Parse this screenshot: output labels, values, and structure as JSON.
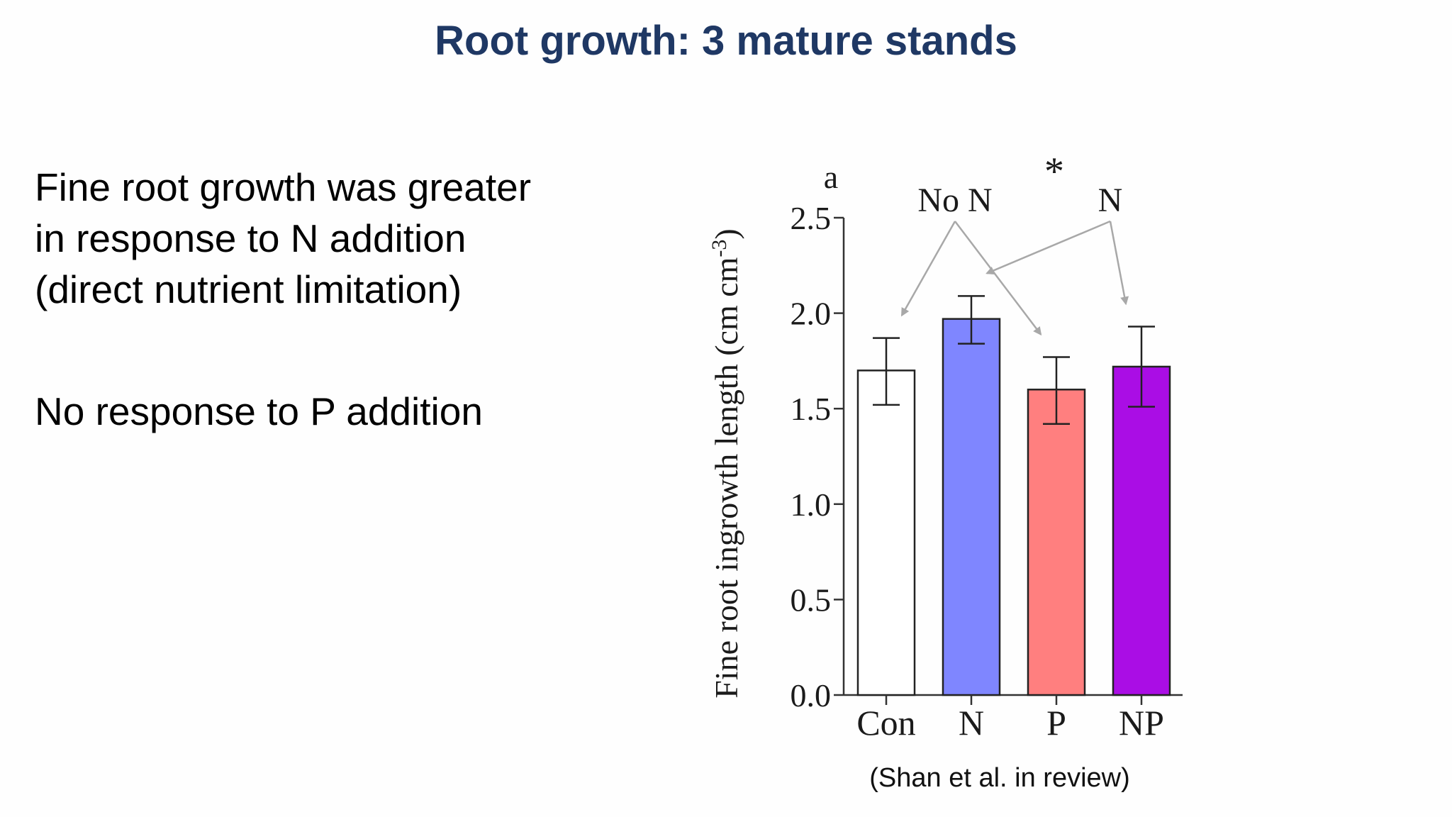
{
  "slide": {
    "title": "Root growth: 3 mature stands",
    "bullets": [
      "Fine root growth was greater in response to N addition (direct nutrient limitation)",
      "No response to P addition"
    ],
    "citation": "(Shan et al. in review)"
  },
  "chart_data": {
    "type": "bar",
    "panel_label": "a",
    "categories": [
      "Con",
      "N",
      "P",
      "NP"
    ],
    "values": [
      1.7,
      1.97,
      1.6,
      1.72
    ],
    "error_low": [
      1.52,
      1.84,
      1.42,
      1.51
    ],
    "error_high": [
      1.87,
      2.09,
      1.77,
      1.93
    ],
    "bar_colors": [
      "#ffffff",
      "#7f86ff",
      "#ff7f7f",
      "#aa0de5"
    ],
    "ylabel_main": "Fine root ingrowth length (cm cm",
    "ylabel_sup": "-3",
    "ylabel_close": ")",
    "ylim": [
      0,
      2.5
    ],
    "yticks": [
      "0.0",
      "0.5",
      "1.0",
      "1.5",
      "2.0",
      "2.5"
    ],
    "significance_marker": "*",
    "group_labels": [
      {
        "text": "No N",
        "targets": [
          "Con",
          "P"
        ]
      },
      {
        "text": "N",
        "targets": [
          "N",
          "NP"
        ]
      }
    ],
    "grid": false,
    "legend": "none"
  }
}
